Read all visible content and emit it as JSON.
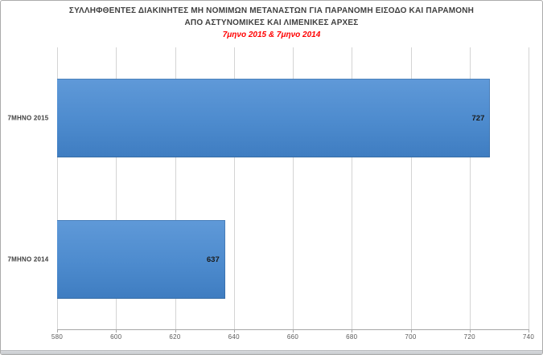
{
  "chart_data": {
    "type": "bar",
    "orientation": "horizontal",
    "title_line1": "ΣΥΛΛΗΦΘΕΝΤΕΣ ΔΙΑΚΙΝΗΤΕΣ ΜΗ ΝΟΜΙΜΩΝ ΜΕΤΑΝΑΣΤΩΝ ΓΙΑ ΠΑΡΑΝΟΜΗ ΕΙΣΟΔΟ ΚΑΙ ΠΑΡΑΜΟΝΗ",
    "title_line2": "ΑΠΟ ΑΣΤΥΝΟΜΙΚΕΣ ΚΑΙ ΛΙΜΕΝΙΚΕΣ ΑΡΧΕΣ",
    "subtitle": "7μηνο 2015 & 7μηνο 2014",
    "categories": [
      "7ΜΗΝΟ 2015",
      "7ΜΗΝΟ 2014"
    ],
    "values": [
      727,
      637
    ],
    "data_labels": [
      "727",
      "637"
    ],
    "xlim": [
      580,
      740
    ],
    "x_ticks": [
      "580",
      "600",
      "620",
      "640",
      "660",
      "680",
      "700",
      "720",
      "740"
    ],
    "grid": true,
    "legend_position": "none",
    "colors": {
      "bar_gradient_top": "#5f99d8",
      "bar_gradient_bottom": "#3f7dc1",
      "bar_border": "#4a80ba",
      "subtitle": "#ff0000",
      "title_text": "#3f3f3f",
      "tick_text": "#595959",
      "gridline": "#d4d4d4",
      "axis_line": "#a6a6a6"
    }
  }
}
